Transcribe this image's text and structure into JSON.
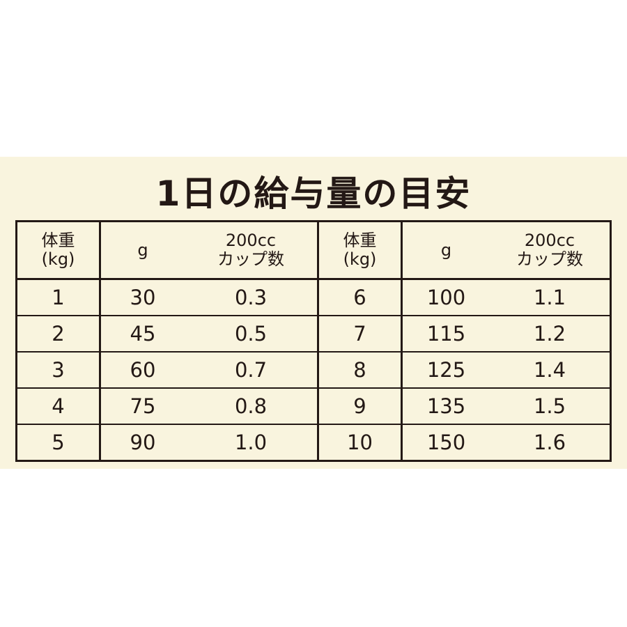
{
  "title": "1日の給与量の目安",
  "headers": {
    "weight_line1": "体重",
    "weight_line2": "(kg)",
    "grams": "g",
    "cups_line1": "200cc",
    "cups_line2": "カップ数"
  },
  "left_rows": [
    {
      "weight": "1",
      "grams": "30",
      "cups": "0.3"
    },
    {
      "weight": "2",
      "grams": "45",
      "cups": "0.5"
    },
    {
      "weight": "3",
      "grams": "60",
      "cups": "0.7"
    },
    {
      "weight": "4",
      "grams": "75",
      "cups": "0.8"
    },
    {
      "weight": "5",
      "grams": "90",
      "cups": "1.0"
    }
  ],
  "right_rows": [
    {
      "weight": "6",
      "grams": "100",
      "cups": "1.1"
    },
    {
      "weight": "7",
      "grams": "115",
      "cups": "1.2"
    },
    {
      "weight": "8",
      "grams": "125",
      "cups": "1.4"
    },
    {
      "weight": "9",
      "grams": "135",
      "cups": "1.5"
    },
    {
      "weight": "10",
      "grams": "150",
      "cups": "1.6"
    }
  ],
  "colors": {
    "background": "#f9f4de",
    "text": "#231815"
  }
}
